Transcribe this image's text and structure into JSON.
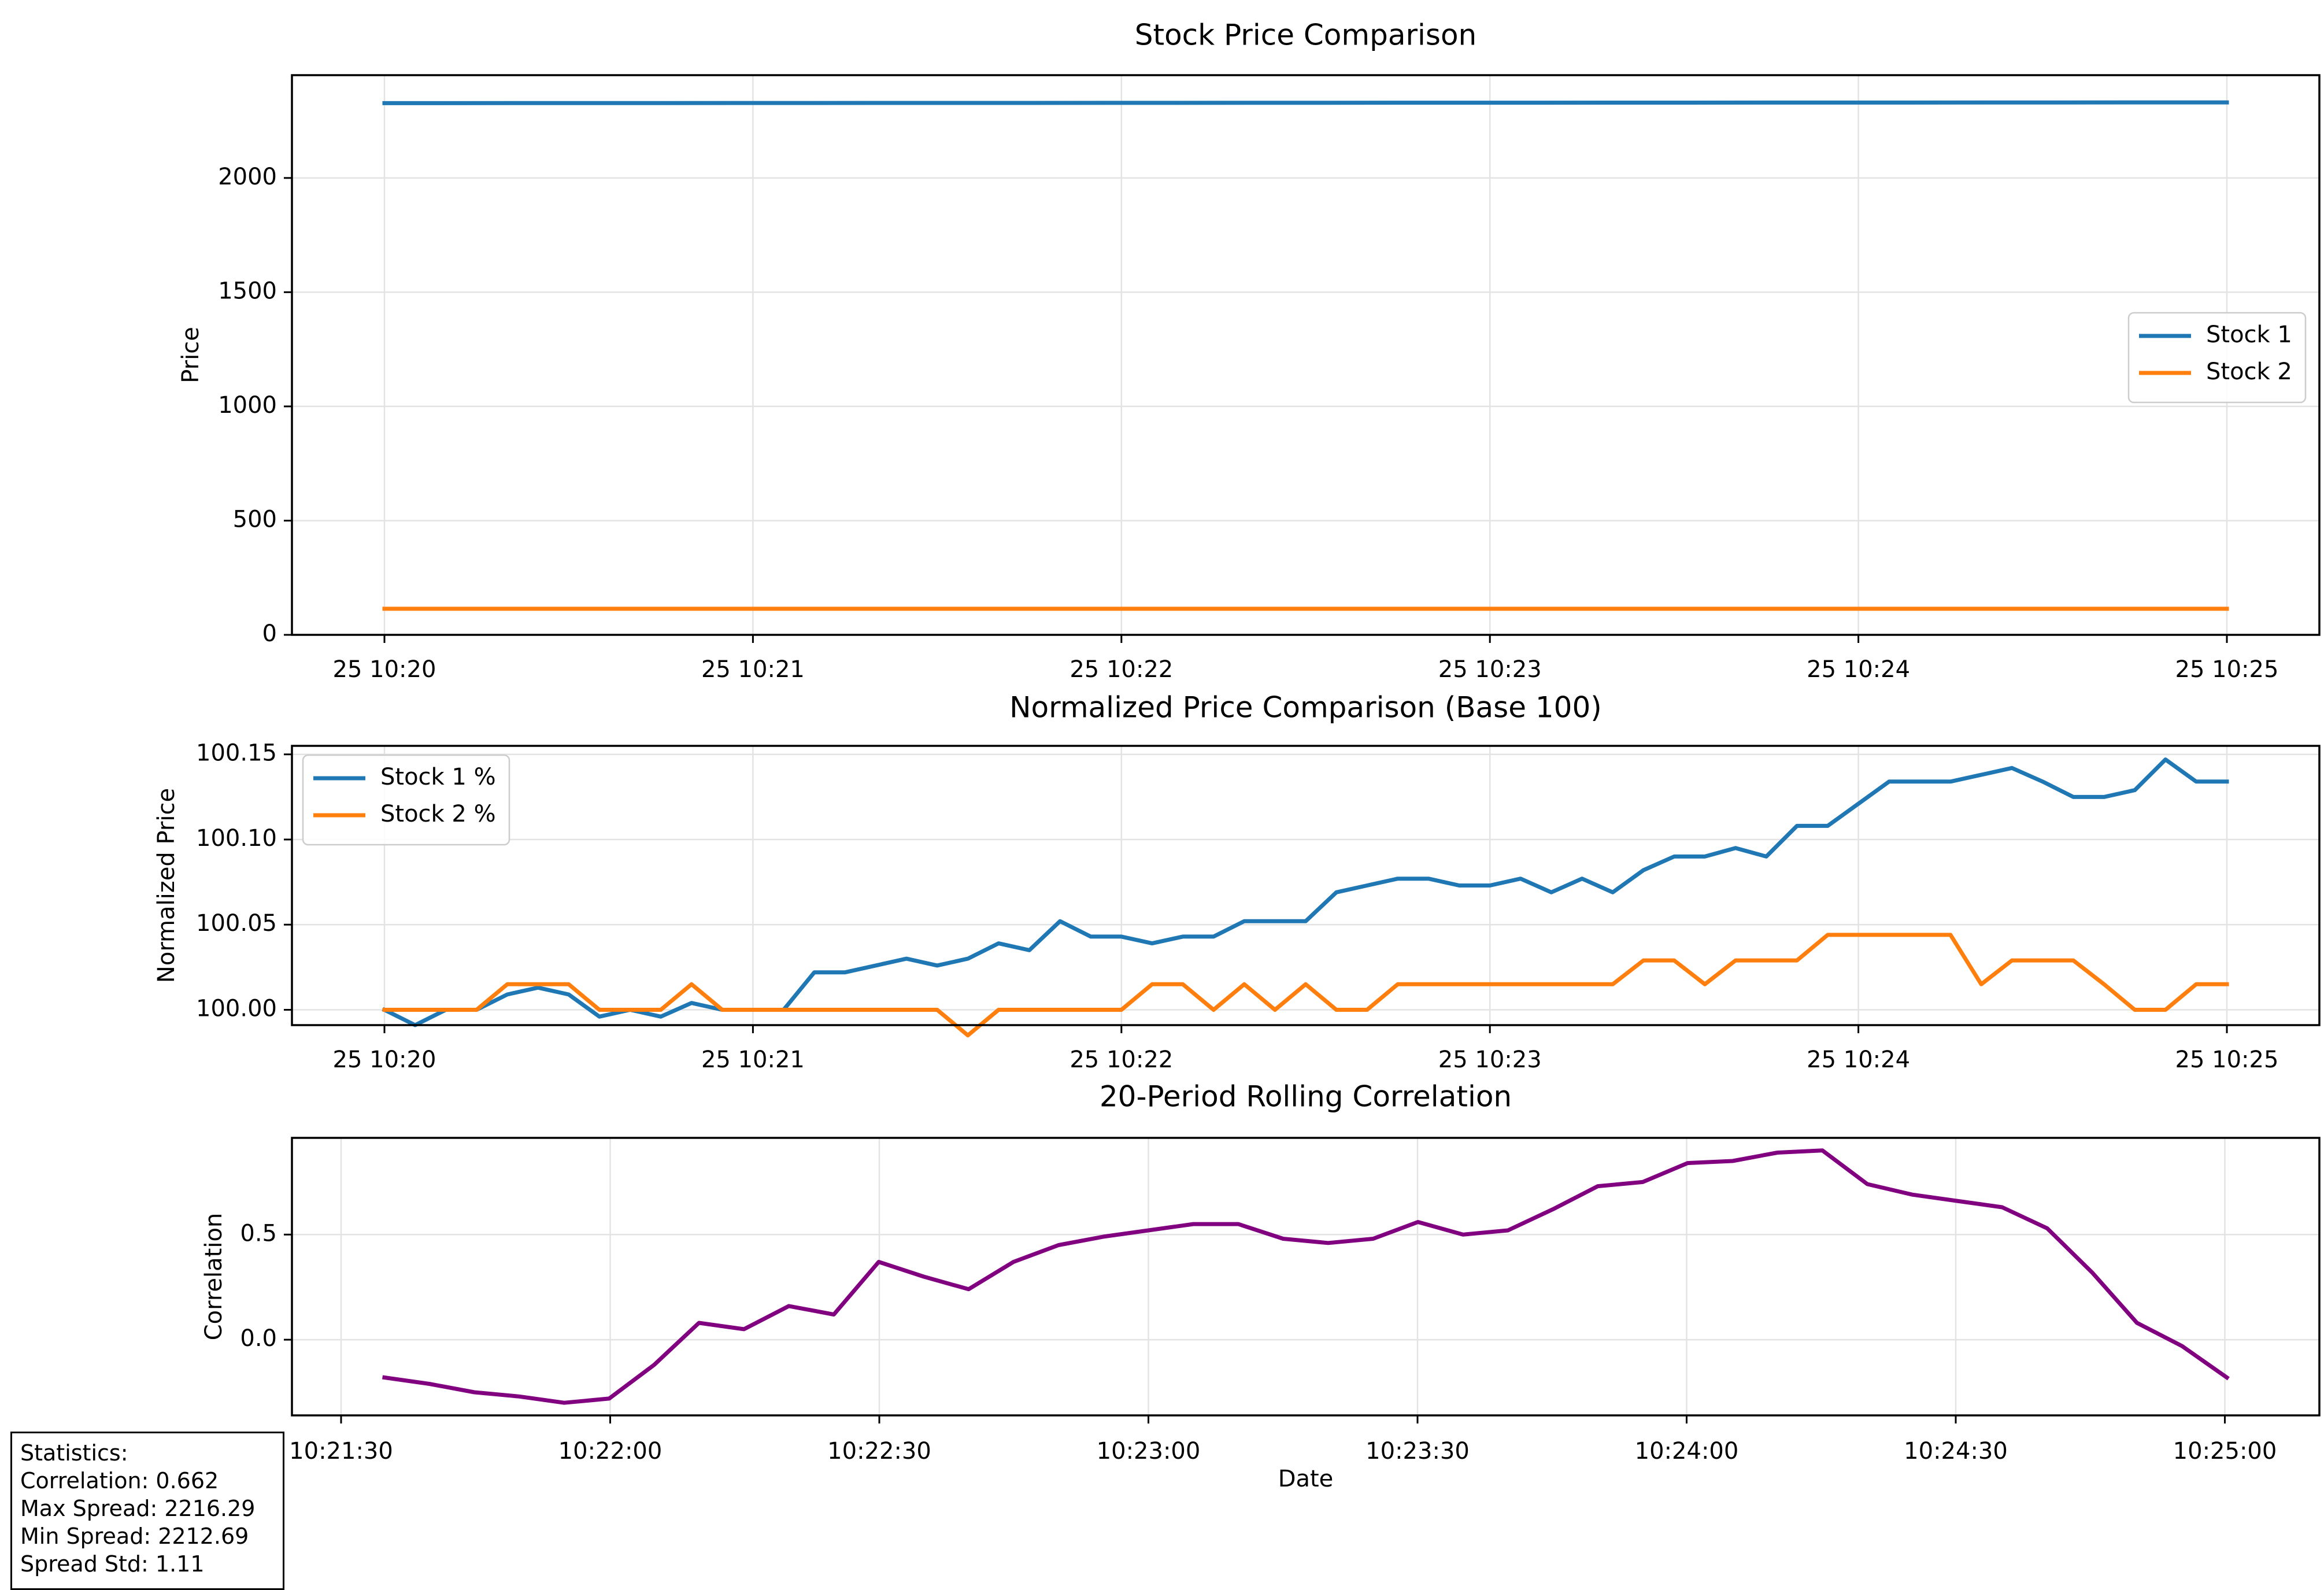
{
  "chart_data": [
    {
      "type": "line",
      "title": "Stock Price Comparison",
      "xlabel": "",
      "ylabel": "Price",
      "ylim": [
        0,
        2450
      ],
      "yticks": [
        0,
        500,
        1000,
        1500,
        2000
      ],
      "xticks": [
        "25 10:20",
        "25 10:21",
        "25 10:22",
        "25 10:23",
        "25 10:24",
        "25 10:25"
      ],
      "grid": true,
      "legend_position": "center-right",
      "series": [
        {
          "name": "Stock 1",
          "color": "#1f77b4",
          "x": [
            0,
            300
          ],
          "values": [
            2327.6,
            2330.8
          ]
        },
        {
          "name": "Stock 2",
          "color": "#ff7f0e",
          "x": [
            0,
            300
          ],
          "values": [
            114.2,
            114.2
          ]
        }
      ]
    },
    {
      "type": "line",
      "title": "Normalized Price Comparison (Base 100)",
      "xlabel": "",
      "ylabel": "Normalized Price",
      "ylim": [
        99.991,
        100.155
      ],
      "yticks": [
        "100.00",
        "100.05",
        "100.10",
        "100.15"
      ],
      "xticks": [
        "25 10:20",
        "25 10:21",
        "25 10:22",
        "25 10:23",
        "25 10:24",
        "25 10:25"
      ],
      "grid": true,
      "legend_position": "top-left",
      "series": [
        {
          "name": "Stock 1 %",
          "color": "#1f77b4",
          "values": [
            100.0,
            99.991,
            100.0,
            100.0,
            100.009,
            100.013,
            100.009,
            99.996,
            100.0,
            99.996,
            100.004,
            100.0,
            100.0,
            100.0,
            100.022,
            100.022,
            100.026,
            100.03,
            100.026,
            100.03,
            100.039,
            100.035,
            100.052,
            100.043,
            100.043,
            100.039,
            100.043,
            100.043,
            100.052,
            100.052,
            100.052,
            100.069,
            100.073,
            100.077,
            100.077,
            100.073,
            100.073,
            100.077,
            100.069,
            100.077,
            100.069,
            100.082,
            100.09,
            100.09,
            100.095,
            100.09,
            100.108,
            100.108,
            100.121,
            100.134,
            100.134,
            100.134,
            100.138,
            100.142,
            100.134,
            100.125,
            100.125,
            100.129,
            100.147,
            100.134,
            100.134
          ]
        },
        {
          "name": "Stock 2 %",
          "color": "#ff7f0e",
          "values": [
            100.0,
            100.0,
            100.0,
            100.0,
            100.015,
            100.015,
            100.015,
            100.0,
            100.0,
            100.0,
            100.015,
            100.0,
            100.0,
            100.0,
            100.0,
            100.0,
            100.0,
            100.0,
            100.0,
            99.985,
            100.0,
            100.0,
            100.0,
            100.0,
            100.0,
            100.015,
            100.015,
            100.0,
            100.015,
            100.0,
            100.015,
            100.0,
            100.0,
            100.015,
            100.015,
            100.015,
            100.015,
            100.015,
            100.015,
            100.015,
            100.015,
            100.029,
            100.029,
            100.015,
            100.029,
            100.029,
            100.029,
            100.044,
            100.044,
            100.044,
            100.044,
            100.044,
            100.015,
            100.029,
            100.029,
            100.029,
            100.015,
            100.0,
            100.0,
            100.015,
            100.015
          ]
        }
      ]
    },
    {
      "type": "line",
      "title": "20-Period Rolling Correlation",
      "xlabel": "Date",
      "ylabel": "Correlation",
      "ylim": [
        -0.36,
        0.96
      ],
      "yticks": [
        "0.0",
        "0.5"
      ],
      "xticks": [
        "10:21:30",
        "10:22:00",
        "10:22:30",
        "10:23:00",
        "10:23:30",
        "10:24:00",
        "10:24:30",
        "10:25:00"
      ],
      "grid": true,
      "series": [
        {
          "name": "",
          "color": "#800080",
          "values": [
            -0.18,
            -0.21,
            -0.25,
            -0.27,
            -0.3,
            -0.28,
            -0.12,
            0.08,
            0.05,
            0.16,
            0.12,
            0.37,
            0.3,
            0.24,
            0.37,
            0.45,
            0.49,
            0.52,
            0.55,
            0.55,
            0.48,
            0.46,
            0.48,
            0.56,
            0.5,
            0.52,
            0.62,
            0.73,
            0.75,
            0.84,
            0.85,
            0.89,
            0.9,
            0.74,
            0.69,
            0.66,
            0.63,
            0.53,
            0.32,
            0.08,
            -0.03,
            -0.18
          ]
        }
      ]
    }
  ],
  "stats": {
    "heading": "Statistics:",
    "correlation": "Correlation: 0.662",
    "max_spread": "Max Spread: 2216.29",
    "min_spread": "Min Spread: 2212.69",
    "spread_std": "Spread Std: 1.11"
  }
}
